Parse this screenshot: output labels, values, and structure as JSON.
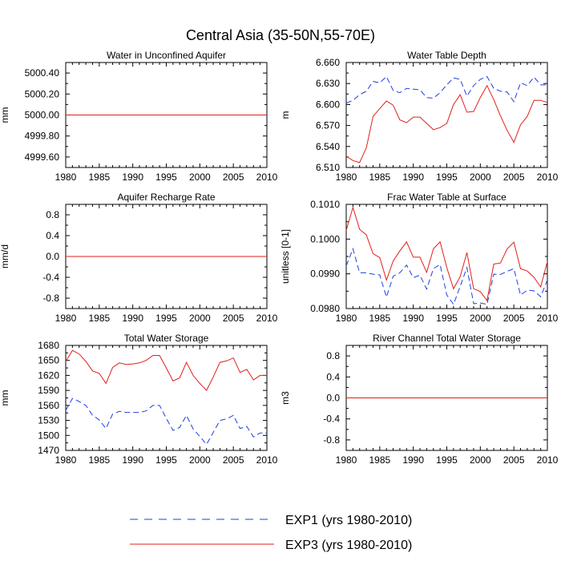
{
  "figure_title": "Central Asia (35-50N,55-70E)",
  "legend": [
    {
      "label": "EXP1 (yrs 1980-2010)",
      "color": "#1f3fe0",
      "dash": "dashed"
    },
    {
      "label": "EXP3 (yrs 1980-2010)",
      "color": "#e0201a",
      "dash": "solid"
    }
  ],
  "chart_data": [
    {
      "id": "unconfined",
      "type": "line",
      "title": "Water in Unconfined Aquifer",
      "ylabel": "mm",
      "xlim": [
        1980,
        2010
      ],
      "xticks": [
        1980,
        1985,
        1990,
        1995,
        2000,
        2005,
        2010
      ],
      "xtick_labels": [
        "1980",
        "1985",
        "1990",
        "1995",
        "2000",
        "2005",
        "2010"
      ],
      "ylim": [
        4999.5,
        5000.5
      ],
      "yticks": [
        4999.6,
        4999.8,
        5000.0,
        5000.2,
        5000.4
      ],
      "ytick_labels": [
        "4999.60",
        "4999.80",
        "5000.00",
        "5000.20",
        "5000.40"
      ],
      "x": [
        1980,
        2010
      ],
      "series": [
        {
          "name": "EXP1 (yrs 1980-2010)",
          "values": [
            5000.0,
            5000.0
          ]
        },
        {
          "name": "EXP3 (yrs 1980-2010)",
          "values": [
            5000.0,
            5000.0
          ]
        }
      ]
    },
    {
      "id": "wtd",
      "type": "line",
      "title": "Water Table Depth",
      "ylabel": "m",
      "xlim": [
        1980,
        2010
      ],
      "xticks": [
        1980,
        1985,
        1990,
        1995,
        2000,
        2005,
        2010
      ],
      "xtick_labels": [
        "1980",
        "1985",
        "1990",
        "1995",
        "2000",
        "2005",
        "2010"
      ],
      "ylim": [
        6.51,
        6.66
      ],
      "yticks": [
        6.51,
        6.54,
        6.57,
        6.6,
        6.63,
        6.66
      ],
      "ytick_labels": [
        "6.510",
        "6.540",
        "6.570",
        "6.600",
        "6.630",
        "6.660"
      ],
      "x": [
        1980,
        1981,
        1982,
        1983,
        1984,
        1985,
        1986,
        1987,
        1988,
        1989,
        1990,
        1991,
        1992,
        1993,
        1994,
        1995,
        1996,
        1997,
        1998,
        1999,
        2000,
        2001,
        2002,
        2003,
        2004,
        2005,
        2006,
        2007,
        2008,
        2009,
        2010
      ],
      "series": [
        {
          "name": "EXP1 (yrs 1980-2010)",
          "values": [
            6.602,
            6.606,
            6.614,
            6.619,
            6.633,
            6.631,
            6.64,
            6.62,
            6.617,
            6.623,
            6.622,
            6.621,
            6.61,
            6.609,
            6.617,
            6.628,
            6.638,
            6.636,
            6.612,
            6.627,
            6.636,
            6.64,
            6.623,
            6.619,
            6.618,
            6.604,
            6.631,
            6.627,
            6.639,
            6.628,
            6.628
          ]
        },
        {
          "name": "EXP3 (yrs 1980-2010)",
          "values": [
            6.526,
            6.52,
            6.517,
            6.538,
            6.583,
            6.594,
            6.605,
            6.599,
            6.578,
            6.574,
            6.582,
            6.582,
            6.573,
            6.564,
            6.567,
            6.573,
            6.6,
            6.614,
            6.589,
            6.59,
            6.61,
            6.627,
            6.607,
            6.584,
            6.563,
            6.546,
            6.571,
            6.583,
            6.606,
            6.606,
            6.603
          ]
        }
      ]
    },
    {
      "id": "recharge",
      "type": "line",
      "title": "Aquifer Recharge Rate",
      "ylabel": "mm/d",
      "xlim": [
        1980,
        2010
      ],
      "xticks": [
        1980,
        1985,
        1990,
        1995,
        2000,
        2005,
        2010
      ],
      "xtick_labels": [
        "1980",
        "1985",
        "1990",
        "1995",
        "2000",
        "2005",
        "2010"
      ],
      "ylim": [
        -1.0,
        1.0
      ],
      "yticks": [
        -0.8,
        -0.4,
        0.0,
        0.4,
        0.8
      ],
      "ytick_labels": [
        "-0.8",
        "-0.4",
        "0.0",
        "0.4",
        "0.8"
      ],
      "x": [
        1980,
        2010
      ],
      "series": [
        {
          "name": "EXP1 (yrs 1980-2010)",
          "values": [
            0.0,
            0.0
          ]
        },
        {
          "name": "EXP3 (yrs 1980-2010)",
          "values": [
            0.0,
            0.0
          ]
        }
      ]
    },
    {
      "id": "frac",
      "type": "line",
      "title": "Frac Water Table at Surface",
      "ylabel": "unitless [0-1]",
      "xlim": [
        1980,
        2010
      ],
      "xticks": [
        1980,
        1985,
        1990,
        1995,
        2000,
        2005,
        2010
      ],
      "xtick_labels": [
        "1980",
        "1985",
        "1990",
        "1995",
        "2000",
        "2005",
        "2010"
      ],
      "ylim": [
        0.098,
        0.101
      ],
      "yticks": [
        0.098,
        0.099,
        0.1,
        0.101
      ],
      "ytick_labels": [
        "0.0980",
        "0.0990",
        "0.1000",
        "0.1010"
      ],
      "x": [
        1980,
        1981,
        1982,
        1983,
        1984,
        1985,
        1986,
        1987,
        1988,
        1989,
        1990,
        1991,
        1992,
        1993,
        1994,
        1995,
        1996,
        1997,
        1998,
        1999,
        2000,
        2001,
        2002,
        2003,
        2004,
        2005,
        2006,
        2007,
        2008,
        2009,
        2010
      ],
      "series": [
        {
          "name": "EXP1 (yrs 1980-2010)",
          "values": [
            0.09923,
            0.09972,
            0.09903,
            0.09903,
            0.09899,
            0.09897,
            0.09833,
            0.09893,
            0.09903,
            0.09925,
            0.09889,
            0.09896,
            0.09856,
            0.09915,
            0.09927,
            0.09839,
            0.09812,
            0.09864,
            0.09918,
            0.09814,
            0.09816,
            0.09812,
            0.09899,
            0.09898,
            0.09907,
            0.09915,
            0.09839,
            0.09853,
            0.09851,
            0.09834,
            0.09882
          ]
        },
        {
          "name": "EXP3 (yrs 1980-2010)",
          "values": [
            0.10025,
            0.10091,
            0.10028,
            0.10012,
            0.09958,
            0.09947,
            0.09882,
            0.09937,
            0.09966,
            0.09992,
            0.09948,
            0.09948,
            0.09904,
            0.09972,
            0.09992,
            0.09918,
            0.09857,
            0.09892,
            0.09961,
            0.09857,
            0.09849,
            0.09823,
            0.09928,
            0.09931,
            0.09972,
            0.09991,
            0.09915,
            0.09908,
            0.0989,
            0.09862,
            0.09935
          ]
        }
      ]
    },
    {
      "id": "tws",
      "type": "line",
      "title": "Total Water Storage",
      "ylabel": "mm",
      "xlim": [
        1980,
        2010
      ],
      "xticks": [
        1980,
        1985,
        1990,
        1995,
        2000,
        2005,
        2010
      ],
      "xtick_labels": [
        "1980",
        "1985",
        "1990",
        "1995",
        "2000",
        "2005",
        "2010"
      ],
      "ylim": [
        1470,
        1680
      ],
      "yticks": [
        1470,
        1500,
        1530,
        1560,
        1590,
        1620,
        1650,
        1680
      ],
      "ytick_labels": [
        "1470",
        "1500",
        "1530",
        "1560",
        "1590",
        "1620",
        "1650",
        "1680"
      ],
      "x": [
        1980,
        1981,
        1982,
        1983,
        1984,
        1985,
        1986,
        1987,
        1988,
        1989,
        1990,
        1991,
        1992,
        1993,
        1994,
        1995,
        1996,
        1997,
        1998,
        1999,
        2000,
        2001,
        2002,
        2003,
        2004,
        2005,
        2006,
        2007,
        2008,
        2009,
        2010
      ],
      "series": [
        {
          "name": "EXP1 (yrs 1980-2010)",
          "values": [
            1550,
            1574,
            1568,
            1560,
            1540,
            1531,
            1514,
            1543,
            1548,
            1546,
            1546,
            1546,
            1549,
            1560,
            1560,
            1534,
            1510,
            1516,
            1540,
            1513,
            1498,
            1482,
            1506,
            1530,
            1533,
            1540,
            1514,
            1518,
            1497,
            1505,
            1505
          ]
        },
        {
          "name": "EXP3 (yrs 1980-2010)",
          "values": [
            1648,
            1670,
            1663,
            1648,
            1629,
            1624,
            1604,
            1636,
            1645,
            1642,
            1643,
            1645,
            1650,
            1660,
            1660,
            1635,
            1609,
            1615,
            1646,
            1620,
            1604,
            1590,
            1617,
            1646,
            1649,
            1655,
            1626,
            1632,
            1611,
            1620,
            1620
          ]
        }
      ]
    },
    {
      "id": "river",
      "type": "line",
      "title": "River Channel Total Water Storage",
      "ylabel": "m3",
      "xlim": [
        1980,
        2010
      ],
      "xticks": [
        1980,
        1985,
        1990,
        1995,
        2000,
        2005,
        2010
      ],
      "xtick_labels": [
        "1980",
        "1985",
        "1990",
        "1995",
        "2000",
        "2005",
        "2010"
      ],
      "ylim": [
        -1.0,
        1.0
      ],
      "yticks": [
        -0.8,
        -0.4,
        0.0,
        0.4,
        0.8
      ],
      "ytick_labels": [
        "-0.8",
        "-0.4",
        "0.0",
        "0.4",
        "0.8"
      ],
      "x": [
        1980,
        2010
      ],
      "series": [
        {
          "name": "EXP1 (yrs 1980-2010)",
          "values": [
            0.0,
            0.0
          ]
        },
        {
          "name": "EXP3 (yrs 1980-2010)",
          "values": [
            0.0,
            0.0
          ]
        }
      ]
    }
  ]
}
